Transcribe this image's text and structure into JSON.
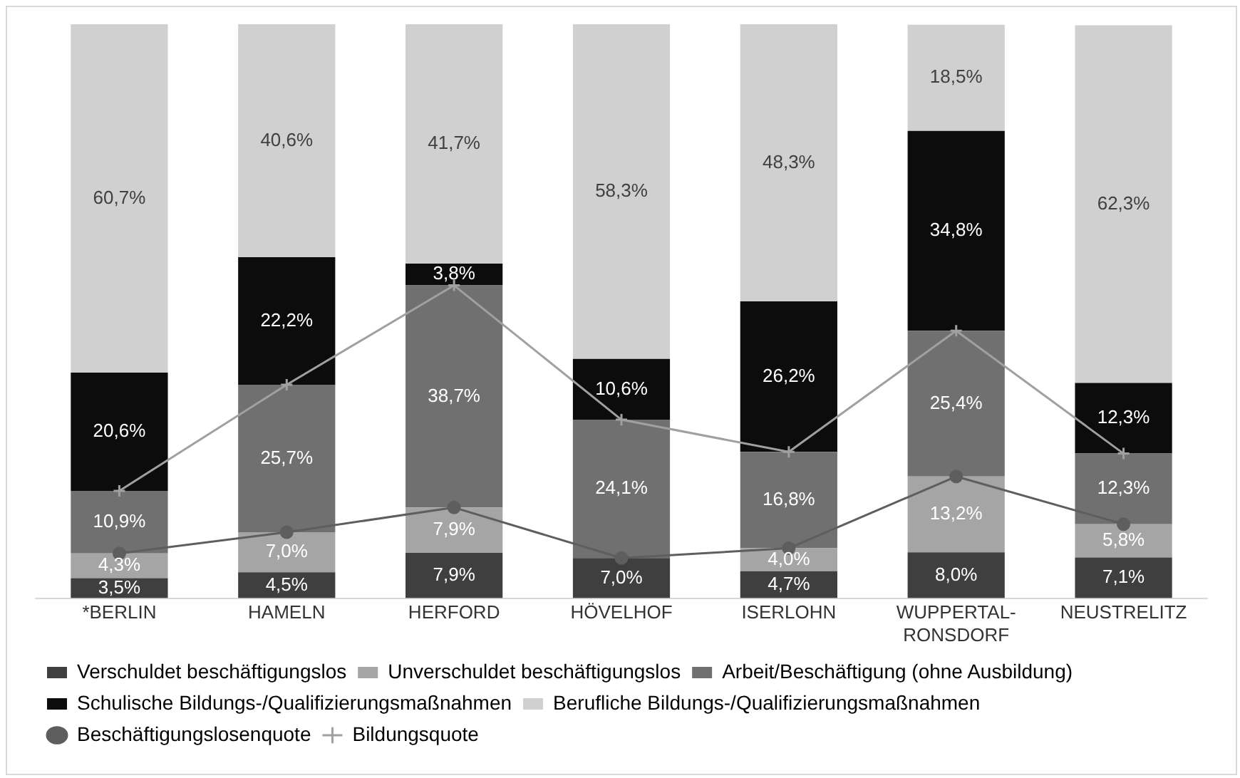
{
  "chart_data": {
    "type": "bar",
    "stacked": true,
    "categories": [
      "*BERLIN",
      "HAMELN",
      "HERFORD",
      "HÖVELHOF",
      "ISERLOHN",
      "WUPPERTAL-RONSDORF",
      "NEUSTRELITZ"
    ],
    "ylim": [
      0,
      100
    ],
    "tick_labels": "x",
    "grid": false,
    "legend": "bottom",
    "series": [
      {
        "name": "Verschuldet beschäftigungslos",
        "color": "#3f3f3f",
        "values": [
          3.5,
          4.5,
          7.9,
          7.0,
          4.7,
          8.0,
          7.1
        ],
        "value_labels": [
          "3,5%",
          "4,5%",
          "7,9%",
          "7,0%",
          "4,7%",
          "8,0%",
          "7,1%"
        ]
      },
      {
        "name": "Unverschuldet beschäftigungslos",
        "color": "#a5a5a5",
        "values": [
          4.3,
          7.0,
          7.9,
          null,
          4.0,
          13.2,
          5.8
        ],
        "value_labels": [
          "4,3%",
          "7,0%",
          "7,9%",
          null,
          "4,0%",
          "13,2%",
          "5,8%"
        ]
      },
      {
        "name": "Arbeit/Beschäftigung (ohne Ausbildung)",
        "color": "#707070",
        "values": [
          10.9,
          25.7,
          38.7,
          24.1,
          16.8,
          25.4,
          12.3
        ],
        "value_labels": [
          "10,9%",
          "25,7%",
          "38,7%",
          "24,1%",
          "16,8%",
          "25,4%",
          "12,3%"
        ]
      },
      {
        "name": "Schulische Bildungs-/Qualifizierungsmaßnahmen",
        "color": "#0c0c0c",
        "values": [
          20.6,
          22.2,
          3.8,
          10.6,
          26.2,
          34.8,
          12.3
        ],
        "value_labels": [
          "20,6%",
          "22,2%",
          "3,8%",
          "10,6%",
          "26,2%",
          "34,8%",
          "12,3%"
        ]
      },
      {
        "name": "Berufliche Bildungs-/Qualifizierungsmaßnahmen",
        "color": "#d0d0d0",
        "values": [
          60.7,
          40.6,
          41.7,
          58.3,
          48.3,
          18.5,
          62.3
        ],
        "value_labels": [
          "60,7%",
          "40,6%",
          "41,7%",
          "58,3%",
          "48,3%",
          "18,5%",
          "62,3%"
        ]
      },
      {
        "name": "Beschäftigungslosenquote",
        "type": "line",
        "marker": "circle",
        "color": "#5e5e5e",
        "values": [
          7.8,
          11.5,
          15.8,
          7.0,
          8.7,
          21.2,
          12.9
        ]
      },
      {
        "name": "Bildungsquote",
        "type": "line",
        "marker": "cross",
        "color": "#a0a0a0",
        "values": [
          18.7,
          37.2,
          54.5,
          31.1,
          25.5,
          46.6,
          25.2
        ]
      }
    ]
  }
}
